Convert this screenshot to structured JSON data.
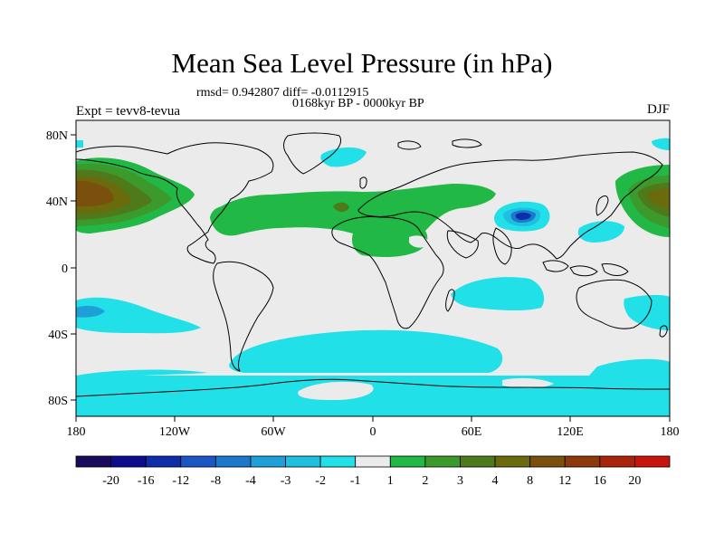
{
  "title": "Mean Sea Level Pressure (in hPa)",
  "stats": "rmsd= 0.942807 diff= -0.0112915",
  "period": "0168kyr BP - 0000kyr BP",
  "experiment": "Expt = tevv8-tevua",
  "season": "DJF",
  "lat_labels": [
    "80N",
    "40N",
    "0",
    "40S",
    "80S"
  ],
  "lon_labels": [
    "180",
    "120W",
    "60W",
    "0",
    "60E",
    "120E",
    "180"
  ],
  "colorbar": {
    "colors": [
      "#1a0a5e",
      "#0c0c8c",
      "#0d2ea8",
      "#1a56c4",
      "#1b78cc",
      "#1f9fd8",
      "#1fbfe0",
      "#21e0e8",
      "#ebebeb",
      "#21b845",
      "#3c9a2c",
      "#4e7a1c",
      "#6b6a0c",
      "#7a500c",
      "#8c3a0c",
      "#a8240c",
      "#c8140c"
    ],
    "labels": [
      "-20",
      "-16",
      "-12",
      "-8",
      "-4",
      "-3",
      "-2",
      "-1",
      "1",
      "2",
      "3",
      "4",
      "8",
      "12",
      "16",
      "20"
    ]
  }
}
